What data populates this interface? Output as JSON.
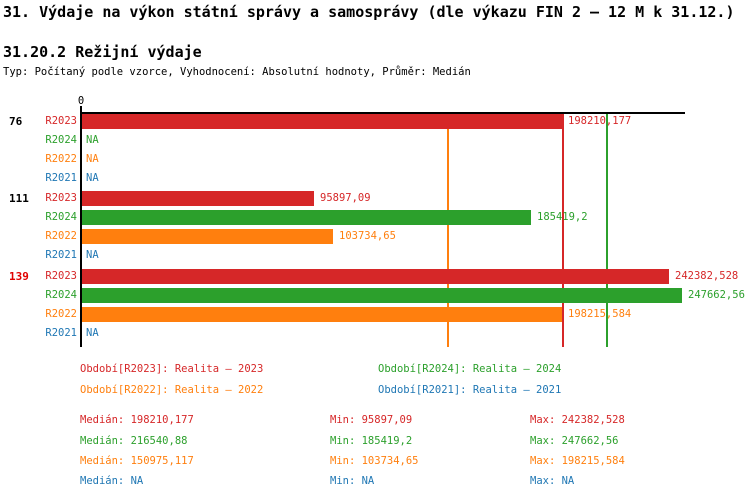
{
  "title": "31. Výdaje na výkon státní správy a samosprávy (dle výkazu FIN 2 – 12 M k 31.12.)",
  "subtitle": "31.20.2 Režijní výdaje",
  "meta_line": "Typ: Počítaný podle vzorce, Vyhodnocení: Absolutní hodnoty, Průměr: Medián",
  "colors": {
    "r2023": "#d62728",
    "r2024": "#2ca02c",
    "r2022": "#ff7f0e",
    "r2021": "#1f77b4",
    "highlight_group_label": "#e00000",
    "axis": "#000000"
  },
  "chart_data": {
    "type": "bar",
    "orientation": "horizontal",
    "title": "31.20.2 Režijní výdaje",
    "x_axis": {
      "origin_label": "0",
      "ticks": [
        "0"
      ],
      "max_value": 249000,
      "grid": false
    },
    "na_text": "NA",
    "series": [
      {
        "id": "R2023",
        "color": "#d62728"
      },
      {
        "id": "R2024",
        "color": "#2ca02c"
      },
      {
        "id": "R2022",
        "color": "#ff7f0e"
      },
      {
        "id": "R2021",
        "color": "#1f77b4"
      }
    ],
    "groups": [
      {
        "label": "76",
        "label_color": "#000000",
        "values": [
          {
            "series": "R2023",
            "value": 198210.177,
            "display": "198210,177"
          },
          {
            "series": "R2024",
            "value": null,
            "display": "NA"
          },
          {
            "series": "R2022",
            "value": null,
            "display": "NA"
          },
          {
            "series": "R2021",
            "value": null,
            "display": "NA"
          }
        ]
      },
      {
        "label": "111",
        "label_color": "#000000",
        "values": [
          {
            "series": "R2023",
            "value": 95897.09,
            "display": "95897,09"
          },
          {
            "series": "R2024",
            "value": 185419.2,
            "display": "185419,2"
          },
          {
            "series": "R2022",
            "value": 103734.65,
            "display": "103734,65"
          },
          {
            "series": "R2021",
            "value": null,
            "display": "NA"
          }
        ]
      },
      {
        "label": "139",
        "label_color": "#e00000",
        "values": [
          {
            "series": "R2023",
            "value": 242382.528,
            "display": "242382,528"
          },
          {
            "series": "R2024",
            "value": 247662.56,
            "display": "247662,56"
          },
          {
            "series": "R2022",
            "value": 198215.584,
            "display": "198215,584"
          },
          {
            "series": "R2021",
            "value": null,
            "display": "NA"
          }
        ]
      }
    ],
    "median_lines": [
      {
        "series": "R2023",
        "value": 198210.177,
        "color": "#d62728"
      },
      {
        "series": "R2024",
        "value": 216540.88,
        "color": "#2ca02c"
      },
      {
        "series": "R2022",
        "value": 150975.117,
        "color": "#ff7f0e"
      }
    ]
  },
  "legend": [
    {
      "series": "R2023",
      "label": "Období[R2023]: Realita – 2023",
      "color": "#d62728"
    },
    {
      "series": "R2024",
      "label": "Období[R2024]: Realita – 2024",
      "color": "#2ca02c"
    },
    {
      "series": "R2022",
      "label": "Období[R2022]: Realita – 2022",
      "color": "#ff7f0e"
    },
    {
      "series": "R2021",
      "label": "Období[R2021]: Realita – 2021",
      "color": "#1f77b4"
    }
  ],
  "stats": [
    {
      "series": "R2023",
      "color": "#d62728",
      "median": "Medián: 198210,177",
      "min": "Min: 95897,09",
      "max": "Max: 242382,528"
    },
    {
      "series": "R2024",
      "color": "#2ca02c",
      "median": "Medián: 216540,88",
      "min": "Min: 185419,2",
      "max": "Max: 247662,56"
    },
    {
      "series": "R2022",
      "color": "#ff7f0e",
      "median": "Medián: 150975,117",
      "min": "Min: 103734,65",
      "max": "Max: 198215,584"
    },
    {
      "series": "R2021",
      "color": "#1f77b4",
      "median": "Medián: NA",
      "min": "Min: NA",
      "max": "Max: NA"
    }
  ]
}
